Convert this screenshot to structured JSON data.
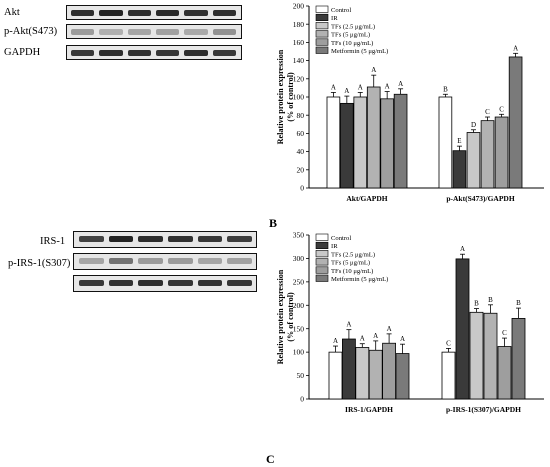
{
  "panel_labels": {
    "b": "B",
    "c": "C"
  },
  "blot_top": {
    "labels": [
      "Akt",
      "p-Akt(S473)",
      "GAPDH"
    ],
    "band_intensities": [
      [
        0.9,
        0.95,
        0.9,
        0.92,
        0.88,
        0.9
      ],
      [
        0.35,
        0.25,
        0.3,
        0.32,
        0.28,
        0.4
      ],
      [
        0.85,
        0.9,
        0.88,
        0.86,
        0.9,
        0.85
      ]
    ]
  },
  "blot_bottom": {
    "labels": [
      "IRS-1",
      "p-IRS-1(S307)",
      ""
    ],
    "band_intensities": [
      [
        0.8,
        0.95,
        0.9,
        0.88,
        0.85,
        0.82
      ],
      [
        0.3,
        0.55,
        0.35,
        0.35,
        0.3,
        0.32
      ],
      [
        0.85,
        0.88,
        0.9,
        0.87,
        0.88,
        0.86
      ]
    ]
  },
  "chart_data": [
    {
      "type": "bar",
      "ylabel": "Relative protein expression\n(% of control)",
      "ylim": [
        0,
        200
      ],
      "ytick_step": 20,
      "categories": [
        "Akt/GAPDH",
        "p-Akt(S473)/GAPDH"
      ],
      "legend_position": "top-left",
      "series": [
        {
          "name": "Control",
          "color": "#ffffff",
          "values": [
            100,
            100
          ],
          "errors": [
            5,
            3
          ],
          "labels": [
            "A",
            "B"
          ]
        },
        {
          "name": "IR",
          "color": "#3a3a3a",
          "values": [
            93,
            41
          ],
          "errors": [
            8,
            5
          ],
          "labels": [
            "A",
            "E"
          ]
        },
        {
          "name": "TFs (2.5 μg/mL)",
          "color": "#c8c8c8",
          "values": [
            100,
            61
          ],
          "errors": [
            5,
            3
          ],
          "labels": [
            "A",
            "D"
          ]
        },
        {
          "name": "TFs (5 μg/mL)",
          "color": "#b2b2b2",
          "values": [
            111,
            74
          ],
          "errors": [
            13,
            4
          ],
          "labels": [
            "A",
            "C"
          ]
        },
        {
          "name": "TFs (10 μg/mL)",
          "color": "#9e9e9e",
          "values": [
            98,
            78
          ],
          "errors": [
            8,
            3
          ],
          "labels": [
            "A",
            "C"
          ]
        },
        {
          "name": "Metformin (5 μg/mL)",
          "color": "#7a7a7a",
          "values": [
            103,
            144
          ],
          "errors": [
            6,
            4
          ],
          "labels": [
            "A",
            "A"
          ]
        }
      ]
    },
    {
      "type": "bar",
      "ylabel": "Relative protein expression\n(% of control)",
      "ylim": [
        0,
        350
      ],
      "ytick_step": 50,
      "categories": [
        "IRS-1/GAPDH",
        "p-IRS-1(S307)/GAPDH"
      ],
      "legend_position": "top-left",
      "series": [
        {
          "name": "Control",
          "color": "#ffffff",
          "values": [
            100,
            100
          ],
          "errors": [
            13,
            8
          ],
          "labels": [
            "A",
            "C"
          ]
        },
        {
          "name": "IR",
          "color": "#3a3a3a",
          "values": [
            128,
            299
          ],
          "errors": [
            20,
            10
          ],
          "labels": [
            "A",
            "A"
          ]
        },
        {
          "name": "TFs (2.5 μg/mL)",
          "color": "#c8c8c8",
          "values": [
            110,
            185
          ],
          "errors": [
            8,
            8
          ],
          "labels": [
            "A",
            "B"
          ]
        },
        {
          "name": "TFs (5 μg/mL)",
          "color": "#b2b2b2",
          "values": [
            104,
            183
          ],
          "errors": [
            20,
            18
          ],
          "labels": [
            "A",
            "B"
          ]
        },
        {
          "name": "TFs (10 μg/mL)",
          "color": "#9e9e9e",
          "values": [
            119,
            112
          ],
          "errors": [
            20,
            18
          ],
          "labels": [
            "A",
            "C"
          ]
        },
        {
          "name": "Metformin (5 μg/mL)",
          "color": "#7a7a7a",
          "values": [
            97,
            172
          ],
          "errors": [
            20,
            22
          ],
          "labels": [
            "A",
            "B"
          ]
        }
      ]
    }
  ]
}
